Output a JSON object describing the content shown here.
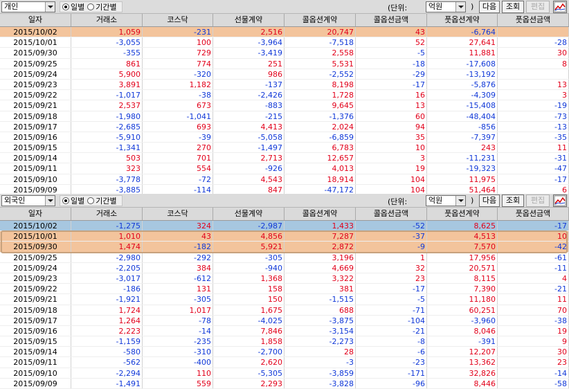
{
  "unit_label": "(단위:",
  "unit_close": ")",
  "buttons": {
    "next": "다음",
    "query": "조회",
    "edit": "편집"
  },
  "radio": {
    "daily": "일별",
    "period": "기간별"
  },
  "columns": [
    "일자",
    "거래소",
    "코스닥",
    "선물계약",
    "콜옵션계약",
    "콜옵션금액",
    "풋옵션계약",
    "풋옵션금액"
  ],
  "colors": {
    "positive": "#e2001a",
    "negative": "#1038d8",
    "highlight_orange": "#f3c49c",
    "highlight_blue": "#a7c7e0"
  },
  "panels": [
    {
      "investor": "개인",
      "unit": "억원",
      "rows": [
        [
          "2015/10/02",
          "1,059",
          "-231",
          "2,516",
          "20,747",
          "43",
          "-6,764",
          ""
        ],
        [
          "2015/10/01",
          "-3,055",
          "100",
          "-3,964",
          "-7,518",
          "52",
          "27,641",
          "-28"
        ],
        [
          "2015/09/30",
          "-355",
          "729",
          "-3,419",
          "2,558",
          "-5",
          "11,881",
          "30"
        ],
        [
          "2015/09/25",
          "861",
          "774",
          "251",
          "5,531",
          "-18",
          "-17,608",
          "8"
        ],
        [
          "2015/09/24",
          "5,900",
          "-320",
          "986",
          "-2,552",
          "-29",
          "-13,192",
          ""
        ],
        [
          "2015/09/23",
          "3,891",
          "1,182",
          "-137",
          "8,198",
          "-17",
          "-5,876",
          "13"
        ],
        [
          "2015/09/22",
          "-1,017",
          "-38",
          "-2,426",
          "1,728",
          "16",
          "-4,309",
          "3"
        ],
        [
          "2015/09/21",
          "2,537",
          "673",
          "-883",
          "9,645",
          "13",
          "-15,408",
          "-19"
        ],
        [
          "2015/09/18",
          "-1,980",
          "-1,041",
          "-215",
          "-1,376",
          "60",
          "-48,404",
          "-73"
        ],
        [
          "2015/09/17",
          "-2,685",
          "693",
          "4,413",
          "2,024",
          "94",
          "-856",
          "-13"
        ],
        [
          "2015/09/16",
          "-5,910",
          "-39",
          "-5,058",
          "-6,859",
          "35",
          "-7,397",
          "-35"
        ],
        [
          "2015/09/15",
          "-1,341",
          "270",
          "-1,497",
          "6,783",
          "10",
          "243",
          "11"
        ],
        [
          "2015/09/14",
          "503",
          "701",
          "2,713",
          "12,657",
          "3",
          "-11,231",
          "-31"
        ],
        [
          "2015/09/11",
          "323",
          "554",
          "-926",
          "4,013",
          "19",
          "-19,323",
          "-47"
        ],
        [
          "2015/09/10",
          "-3,778",
          "-72",
          "4,543",
          "18,914",
          "104",
          "11,975",
          "-17"
        ],
        [
          "2015/09/09",
          "-3,885",
          "-114",
          "847",
          "-47,172",
          "104",
          "51,464",
          "6"
        ]
      ]
    },
    {
      "investor": "외국인",
      "unit": "억원",
      "rows": [
        [
          "2015/10/02",
          "-1,275",
          "324",
          "-2,987",
          "1,433",
          "-52",
          "8,625",
          "-17"
        ],
        [
          "2015/10/01",
          "1,010",
          "43",
          "4,856",
          "7,287",
          "-37",
          "4,513",
          "10"
        ],
        [
          "2015/09/30",
          "1,474",
          "-182",
          "5,921",
          "2,872",
          "-9",
          "7,570",
          "-42"
        ],
        [
          "2015/09/25",
          "-2,980",
          "-292",
          "-305",
          "3,196",
          "1",
          "17,956",
          "-61"
        ],
        [
          "2015/09/24",
          "-2,205",
          "384",
          "-940",
          "4,669",
          "32",
          "20,571",
          "-11"
        ],
        [
          "2015/09/23",
          "-3,017",
          "-612",
          "1,368",
          "3,322",
          "23",
          "8,115",
          "4"
        ],
        [
          "2015/09/22",
          "-186",
          "131",
          "158",
          "381",
          "-17",
          "7,390",
          "-21"
        ],
        [
          "2015/09/21",
          "-1,921",
          "-305",
          "150",
          "-1,515",
          "-5",
          "11,180",
          "11"
        ],
        [
          "2015/09/18",
          "1,724",
          "1,017",
          "1,675",
          "688",
          "-71",
          "60,251",
          "70"
        ],
        [
          "2015/09/17",
          "1,264",
          "-78",
          "-4,025",
          "-3,875",
          "-104",
          "-3,960",
          "-38"
        ],
        [
          "2015/09/16",
          "2,223",
          "-14",
          "7,846",
          "-3,154",
          "-21",
          "8,046",
          "19"
        ],
        [
          "2015/09/15",
          "-1,159",
          "-235",
          "1,858",
          "-2,273",
          "-8",
          "-391",
          "9"
        ],
        [
          "2015/09/14",
          "-580",
          "-310",
          "-2,700",
          "28",
          "-6",
          "12,207",
          "30"
        ],
        [
          "2015/09/11",
          "-562",
          "-400",
          "2,620",
          "-3",
          "-23",
          "13,362",
          "23"
        ],
        [
          "2015/09/10",
          "-2,294",
          "110",
          "-5,305",
          "-3,859",
          "-171",
          "32,826",
          "-14"
        ],
        [
          "2015/09/09",
          "-1,491",
          "559",
          "2,293",
          "-3,828",
          "-96",
          "8,446",
          "-58"
        ]
      ]
    }
  ]
}
